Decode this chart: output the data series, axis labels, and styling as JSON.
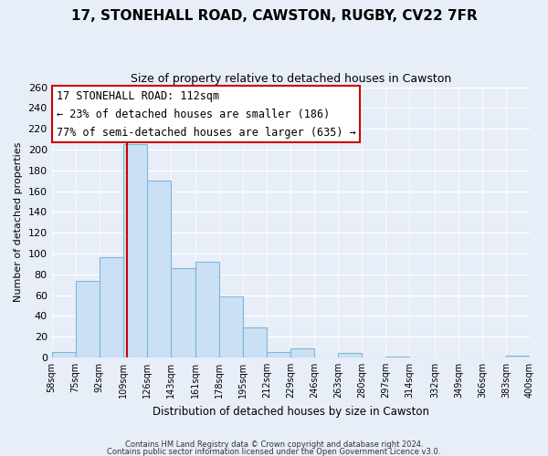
{
  "title": "17, STONEHALL ROAD, CAWSTON, RUGBY, CV22 7FR",
  "subtitle": "Size of property relative to detached houses in Cawston",
  "xlabel": "Distribution of detached houses by size in Cawston",
  "ylabel": "Number of detached properties",
  "bin_edges": [
    58,
    75,
    92,
    109,
    126,
    143,
    161,
    178,
    195,
    212,
    229,
    246,
    263,
    280,
    297,
    314,
    332,
    349,
    366,
    383,
    400
  ],
  "counts": [
    5,
    74,
    96,
    205,
    170,
    86,
    92,
    59,
    29,
    5,
    9,
    0,
    4,
    0,
    1,
    0,
    0,
    0,
    0,
    2
  ],
  "bar_color": "#cce0f5",
  "bar_edge_color": "#7ab8d9",
  "property_line_x": 112,
  "property_line_color": "#cc0000",
  "ylim": [
    0,
    260
  ],
  "yticks": [
    0,
    20,
    40,
    60,
    80,
    100,
    120,
    140,
    160,
    180,
    200,
    220,
    240,
    260
  ],
  "tick_labels": [
    "58sqm",
    "75sqm",
    "92sqm",
    "109sqm",
    "126sqm",
    "143sqm",
    "161sqm",
    "178sqm",
    "195sqm",
    "212sqm",
    "229sqm",
    "246sqm",
    "263sqm",
    "280sqm",
    "297sqm",
    "314sqm",
    "332sqm",
    "349sqm",
    "366sqm",
    "383sqm",
    "400sqm"
  ],
  "annotation_title": "17 STONEHALL ROAD: 112sqm",
  "annotation_line1": "← 23% of detached houses are smaller (186)",
  "annotation_line2": "77% of semi-detached houses are larger (635) →",
  "annotation_box_color": "#ffffff",
  "annotation_box_edge_color": "#cc0000",
  "footer_line1": "Contains HM Land Registry data © Crown copyright and database right 2024.",
  "footer_line2": "Contains public sector information licensed under the Open Government Licence v3.0.",
  "background_color": "#e8eef8",
  "plot_bg_color": "#e8eef8"
}
